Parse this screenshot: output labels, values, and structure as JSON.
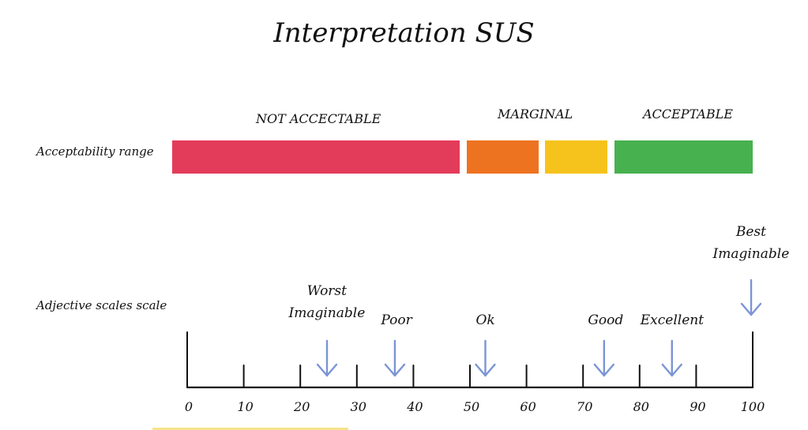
{
  "title": "Interpretation SUS",
  "acceptability": {
    "row_label": "Acceptability range",
    "zones": [
      {
        "label": "NOT ACCECTABLE"
      },
      {
        "label": "MARGINAL"
      },
      {
        "label": "ACCEPTABLE"
      }
    ],
    "bars": [
      {
        "from": 0,
        "to": 51,
        "color": "#e33c5a"
      },
      {
        "from": 52,
        "to": 62,
        "color": "#ee7321"
      },
      {
        "from": 64,
        "to": 74,
        "color": "#f6c31d"
      },
      {
        "from": 76,
        "to": 100,
        "color": "#47b14f"
      }
    ]
  },
  "adjective": {
    "row_label": "Adjective scales scale",
    "items": [
      {
        "text": "Worst\nImaginable",
        "value": 25,
        "arrow_color": "#7a95d4"
      },
      {
        "text": "Poor",
        "value": 37,
        "arrow_color": "#7a95d4"
      },
      {
        "text": "Ok",
        "value": 53,
        "arrow_color": "#7a95d4"
      },
      {
        "text": "Good",
        "value": 74,
        "arrow_color": "#7a95d4"
      },
      {
        "text": "Excellent",
        "value": 86,
        "arrow_color": "#7a95d4"
      },
      {
        "text": "Best\nImaginable",
        "value": 100,
        "arrow_color": "#7a95d4"
      }
    ]
  },
  "scale": {
    "min": 0,
    "max": 100,
    "tick_labels": [
      "0",
      "10",
      "20",
      "30",
      "40",
      "50",
      "60",
      "70",
      "80",
      "90",
      "100"
    ]
  }
}
